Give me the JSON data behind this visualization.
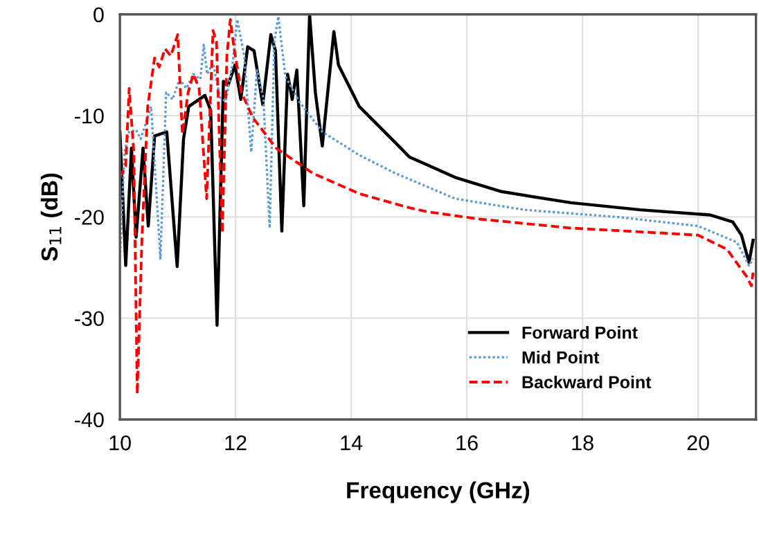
{
  "chart_data": {
    "type": "line",
    "xlabel": "Frequency (GHz)",
    "ylabel": "S$_{11}$ (dB)",
    "xlim": [
      10,
      21
    ],
    "xticks": [
      10,
      12,
      14,
      16,
      18,
      20
    ],
    "ylim": [
      -40,
      0
    ],
    "yticks": [
      -40,
      -30,
      -20,
      -10,
      0
    ],
    "grid": true,
    "legend": "bottom right",
    "series": [
      {
        "name": "Forward Point",
        "color": "#000000",
        "line_style": "solid",
        "x": [
          10.0,
          10.1,
          10.2,
          10.28,
          10.4,
          10.49,
          10.6,
          10.81,
          10.99,
          11.1,
          11.19,
          11.47,
          11.57,
          11.68,
          11.79,
          11.87,
          11.99,
          12.09,
          12.21,
          12.32,
          12.47,
          12.61,
          12.69,
          12.8,
          12.9,
          12.98,
          13.06,
          13.18,
          13.28,
          13.38,
          13.5,
          13.7,
          13.78,
          14.14,
          14.77,
          15.01,
          15.33,
          15.8,
          16.6,
          17.8,
          19.0,
          20.2,
          20.6,
          20.75,
          20.88,
          20.95
        ],
        "values": [
          -11.6,
          -24.8,
          -13.2,
          -22,
          -13.2,
          -20.9,
          -12,
          -11.6,
          -24.9,
          -12.3,
          -9.1,
          -8,
          -9.5,
          -30.7,
          -6.6,
          -7,
          -5,
          -8.4,
          -3.2,
          -3.6,
          -8.9,
          -2,
          -3.6,
          -21.4,
          -5.9,
          -8.4,
          -5.5,
          -18.9,
          0,
          -7.7,
          -13,
          -1.7,
          -5,
          -9.1,
          -12.7,
          -14.1,
          -14.9,
          -16.1,
          -17.5,
          -18.6,
          -19.3,
          -19.8,
          -20.5,
          -21.8,
          -24.5,
          -22.3
        ]
      },
      {
        "name": "Mid Point",
        "color": "#5b9bd5",
        "line_style": "dotted",
        "x": [
          10.0,
          10.08,
          10.16,
          10.28,
          10.36,
          10.54,
          10.7,
          10.8,
          10.91,
          11.03,
          11.15,
          11.27,
          11.39,
          11.45,
          11.51,
          11.61,
          11.73,
          11.83,
          11.95,
          12.03,
          12.15,
          12.27,
          12.37,
          12.48,
          12.59,
          12.67,
          12.74,
          12.86,
          13.1,
          13.5,
          14.14,
          14.77,
          15.8,
          17.0,
          18.6,
          20.0,
          20.67,
          20.88,
          20.95
        ],
        "values": [
          -24,
          -13.6,
          -11.6,
          -11.4,
          -12.3,
          -9.1,
          -24.1,
          -7.7,
          -8.4,
          -6.4,
          -7.3,
          -5.9,
          -6.4,
          -3,
          -5.9,
          -4.8,
          -8.2,
          -8.6,
          -4.8,
          -0.5,
          -4.1,
          -13.6,
          -5.5,
          -8.2,
          -21.1,
          -2.7,
          -0.2,
          -6.1,
          -8.6,
          -11.6,
          -13.9,
          -15.7,
          -18.2,
          -19.3,
          -20,
          -20.9,
          -22.5,
          -24.8,
          -24.1
        ]
      },
      {
        "name": "Backward Point",
        "color": "#ff0000",
        "line_style": "dashed",
        "x": [
          10.0,
          10.1,
          10.16,
          10.24,
          10.3,
          10.38,
          10.48,
          10.6,
          10.68,
          10.78,
          10.88,
          11.0,
          11.08,
          11.18,
          11.27,
          11.37,
          11.5,
          11.61,
          11.67,
          11.77,
          11.85,
          11.91,
          11.97,
          12.1,
          12.3,
          12.7,
          13.34,
          14.14,
          15.01,
          15.33,
          16.2,
          17.8,
          19.4,
          20.0,
          20.5,
          20.84,
          20.92,
          20.95
        ],
        "values": [
          -16.1,
          -15,
          -7.3,
          -13.6,
          -37.5,
          -22.3,
          -9.1,
          -4.3,
          -5.2,
          -3.4,
          -4.1,
          -2,
          -11.8,
          -7.7,
          -5.9,
          -7.3,
          -18.2,
          -1.6,
          -2.7,
          -21.6,
          -4.1,
          -0.5,
          -3.2,
          -7.7,
          -10.2,
          -13.2,
          -15.7,
          -17.7,
          -19.1,
          -19.5,
          -20.2,
          -21.1,
          -21.6,
          -21.8,
          -23.2,
          -25.9,
          -26.8,
          -25.5
        ]
      }
    ]
  }
}
